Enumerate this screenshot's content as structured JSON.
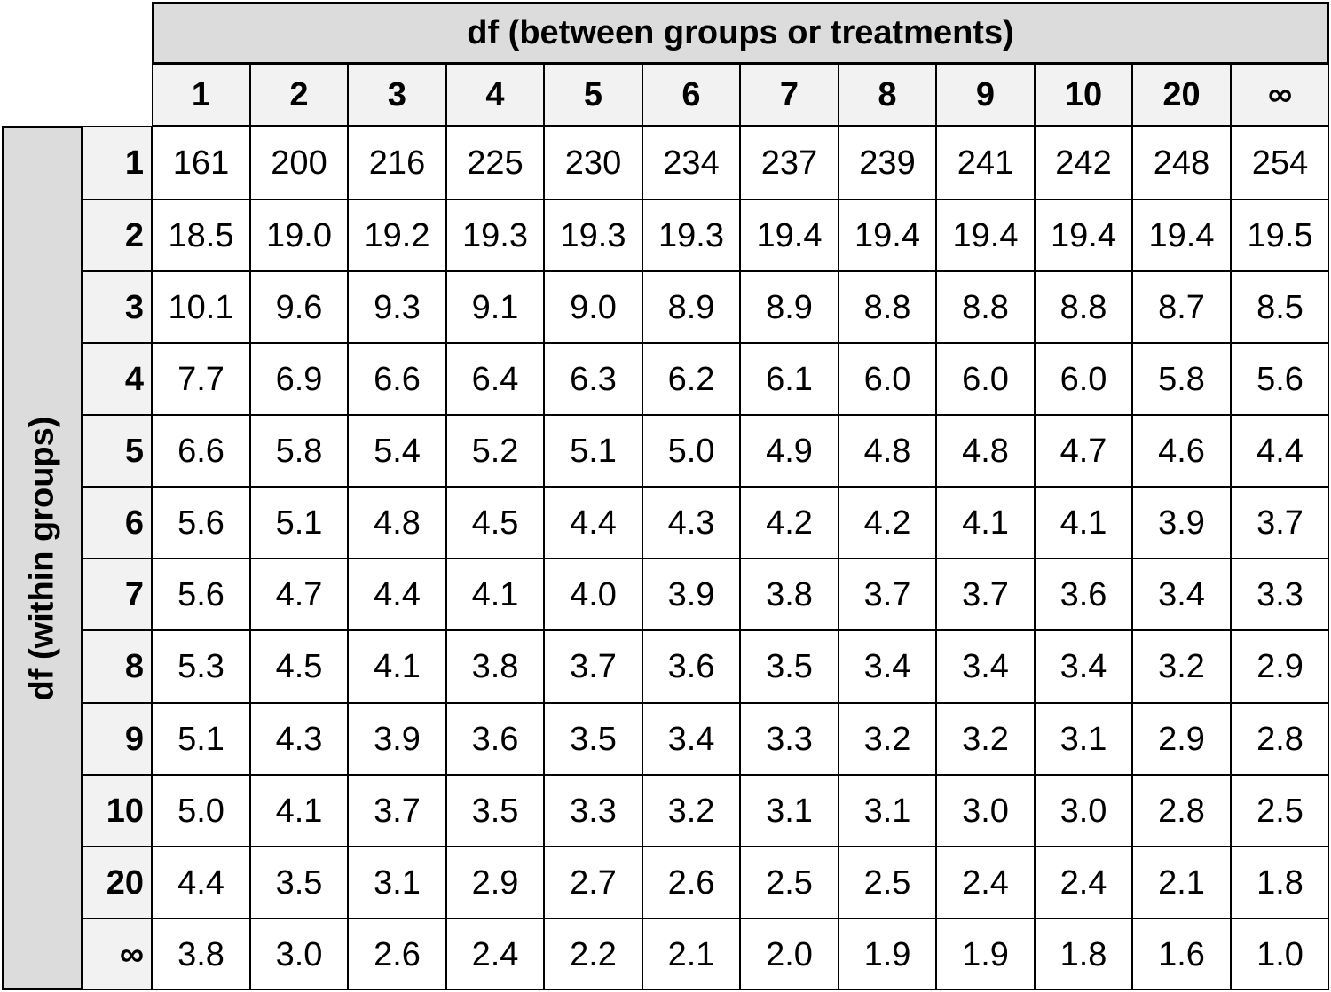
{
  "table": {
    "column_group_label": "df (between groups or treatments)",
    "row_group_label": "df (within groups)",
    "column_headers": [
      "1",
      "2",
      "3",
      "4",
      "5",
      "6",
      "7",
      "8",
      "9",
      "10",
      "20",
      "∞"
    ],
    "rows": [
      {
        "label": "1",
        "values": [
          "161",
          "200",
          "216",
          "225",
          "230",
          "234",
          "237",
          "239",
          "241",
          "242",
          "248",
          "254"
        ]
      },
      {
        "label": "2",
        "values": [
          "18.5",
          "19.0",
          "19.2",
          "19.3",
          "19.3",
          "19.3",
          "19.4",
          "19.4",
          "19.4",
          "19.4",
          "19.4",
          "19.5"
        ]
      },
      {
        "label": "3",
        "values": [
          "10.1",
          "9.6",
          "9.3",
          "9.1",
          "9.0",
          "8.9",
          "8.9",
          "8.8",
          "8.8",
          "8.8",
          "8.7",
          "8.5"
        ]
      },
      {
        "label": "4",
        "values": [
          "7.7",
          "6.9",
          "6.6",
          "6.4",
          "6.3",
          "6.2",
          "6.1",
          "6.0",
          "6.0",
          "6.0",
          "5.8",
          "5.6"
        ]
      },
      {
        "label": "5",
        "values": [
          "6.6",
          "5.8",
          "5.4",
          "5.2",
          "5.1",
          "5.0",
          "4.9",
          "4.8",
          "4.8",
          "4.7",
          "4.6",
          "4.4"
        ]
      },
      {
        "label": "6",
        "values": [
          "5.6",
          "5.1",
          "4.8",
          "4.5",
          "4.4",
          "4.3",
          "4.2",
          "4.2",
          "4.1",
          "4.1",
          "3.9",
          "3.7"
        ]
      },
      {
        "label": "7",
        "values": [
          "5.6",
          "4.7",
          "4.4",
          "4.1",
          "4.0",
          "3.9",
          "3.8",
          "3.7",
          "3.7",
          "3.6",
          "3.4",
          "3.3"
        ]
      },
      {
        "label": "8",
        "values": [
          "5.3",
          "4.5",
          "4.1",
          "3.8",
          "3.7",
          "3.6",
          "3.5",
          "3.4",
          "3.4",
          "3.4",
          "3.2",
          "2.9"
        ]
      },
      {
        "label": "9",
        "values": [
          "5.1",
          "4.3",
          "3.9",
          "3.6",
          "3.5",
          "3.4",
          "3.3",
          "3.2",
          "3.2",
          "3.1",
          "2.9",
          "2.8"
        ]
      },
      {
        "label": "10",
        "values": [
          "5.0",
          "4.1",
          "3.7",
          "3.5",
          "3.3",
          "3.2",
          "3.1",
          "3.1",
          "3.0",
          "3.0",
          "2.8",
          "2.5"
        ]
      },
      {
        "label": "20",
        "values": [
          "4.4",
          "3.5",
          "3.1",
          "2.9",
          "2.7",
          "2.6",
          "2.5",
          "2.5",
          "2.4",
          "2.4",
          "2.1",
          "1.8"
        ]
      },
      {
        "label": "∞",
        "values": [
          "3.8",
          "3.0",
          "2.6",
          "2.4",
          "2.2",
          "2.1",
          "2.0",
          "1.9",
          "1.9",
          "1.8",
          "1.6",
          "1.0"
        ]
      }
    ]
  }
}
